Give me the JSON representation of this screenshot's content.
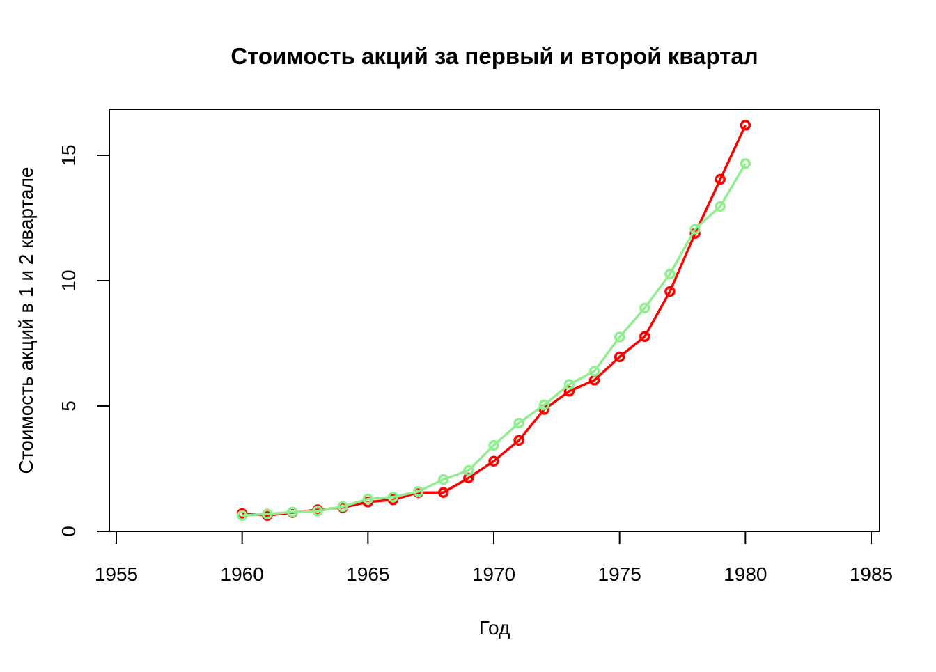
{
  "chart_data": {
    "type": "line",
    "title": "Стоимость акций за первый и второй квартал",
    "xlabel": "Год",
    "ylabel": "Стоимость акций в 1 и 2 квартале",
    "xlim": [
      1955,
      1985
    ],
    "ylim": [
      0,
      16.8
    ],
    "x_ticks": [
      1955,
      1960,
      1965,
      1970,
      1975,
      1980,
      1985
    ],
    "y_ticks": [
      0,
      5,
      10,
      15
    ],
    "x": [
      1960,
      1961,
      1962,
      1963,
      1964,
      1965,
      1966,
      1967,
      1968,
      1969,
      1970,
      1971,
      1972,
      1973,
      1974,
      1975,
      1976,
      1977,
      1978,
      1979,
      1980
    ],
    "series": [
      {
        "color": "#ff0000",
        "values": [
          0.71,
          0.63,
          0.75,
          0.86,
          0.95,
          1.17,
          1.26,
          1.55,
          1.55,
          2.13,
          2.8,
          3.63,
          4.86,
          5.59,
          6.03,
          6.96,
          7.77,
          9.57,
          11.88,
          14.04,
          16.2
        ]
      },
      {
        "color": "#90ee90",
        "values": [
          0.63,
          0.69,
          0.77,
          0.81,
          0.99,
          1.29,
          1.37,
          1.59,
          2.07,
          2.43,
          3.43,
          4.32,
          5.04,
          5.86,
          6.39,
          7.75,
          8.91,
          10.26,
          12.06,
          12.96,
          14.67
        ]
      }
    ],
    "grid": false,
    "legend": "none"
  }
}
